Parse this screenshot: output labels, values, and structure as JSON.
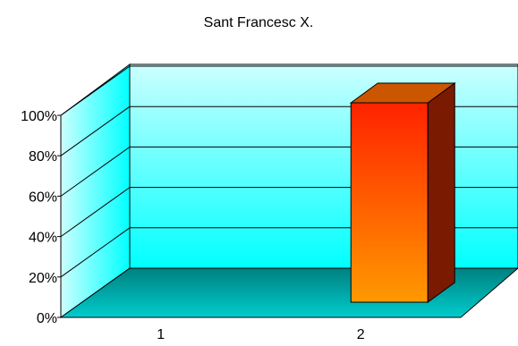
{
  "chart_data": {
    "type": "bar",
    "title": "Sant Francesc X.",
    "xlabel": "",
    "ylabel": "",
    "categories": [
      "1",
      "2"
    ],
    "values": [
      0,
      100
    ],
    "ylim": [
      0,
      100
    ],
    "yticks": [
      "0%",
      "20%",
      "40%",
      "60%",
      "80%",
      "100%"
    ],
    "grid": true,
    "legend": "none",
    "three_d": true
  },
  "colors": {
    "back_wall_top": "#ccffff",
    "back_wall_bottom": "#00ffff",
    "floor": "#008080",
    "floor_light": "#00cccc",
    "bar_top": "#ff2200",
    "bar_bottom": "#ff9900",
    "bar_cap": "#cc5500",
    "bar_side": "#7a1a00",
    "axis": "#000000"
  }
}
